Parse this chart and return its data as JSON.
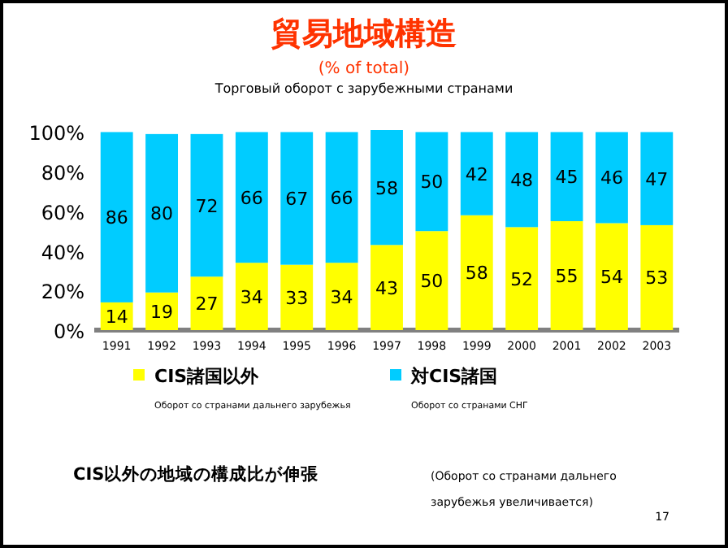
{
  "chart_data": {
    "type": "bar",
    "title": "貿易地域構造",
    "subtitle": "(% of total)",
    "stacked": true,
    "data_labels": true,
    "legend": "bottom",
    "grid": false,
    "categories": [
      "1991",
      "1992",
      "1993",
      "1994",
      "1995",
      "1996",
      "1997",
      "1998",
      "1999",
      "2000",
      "2001",
      "2002",
      "2003"
    ],
    "series": [
      {
        "name": "CIS諸国以外",
        "color": "#ffff00",
        "values": [
          14,
          19,
          27,
          34,
          33,
          34,
          43,
          50,
          58,
          52,
          55,
          54,
          53
        ]
      },
      {
        "name": "対CIS諸国",
        "color": "#00ccff",
        "values": [
          86,
          80,
          72,
          66,
          67,
          66,
          58,
          50,
          42,
          48,
          45,
          46,
          47
        ]
      }
    ],
    "ylim": [
      0,
      101
    ],
    "yticks": [
      {
        "value": 0,
        "label": "0%"
      },
      {
        "value": 20,
        "label": "20%"
      },
      {
        "value": 40,
        "label": "40%"
      },
      {
        "value": 60,
        "label": "60%"
      },
      {
        "value": 80,
        "label": "80%"
      },
      {
        "value": 100,
        "label": "100%"
      }
    ],
    "annotations": [
      "Торговый оборот с зарубежными странами",
      "Оборот со странами дальнего зарубежья",
      "Оборот со странами СНГ",
      "CIS以外の地域の構成比が伸張",
      "(Оборот со странами дальнего зарубежья увеличивается)",
      "17"
    ]
  }
}
